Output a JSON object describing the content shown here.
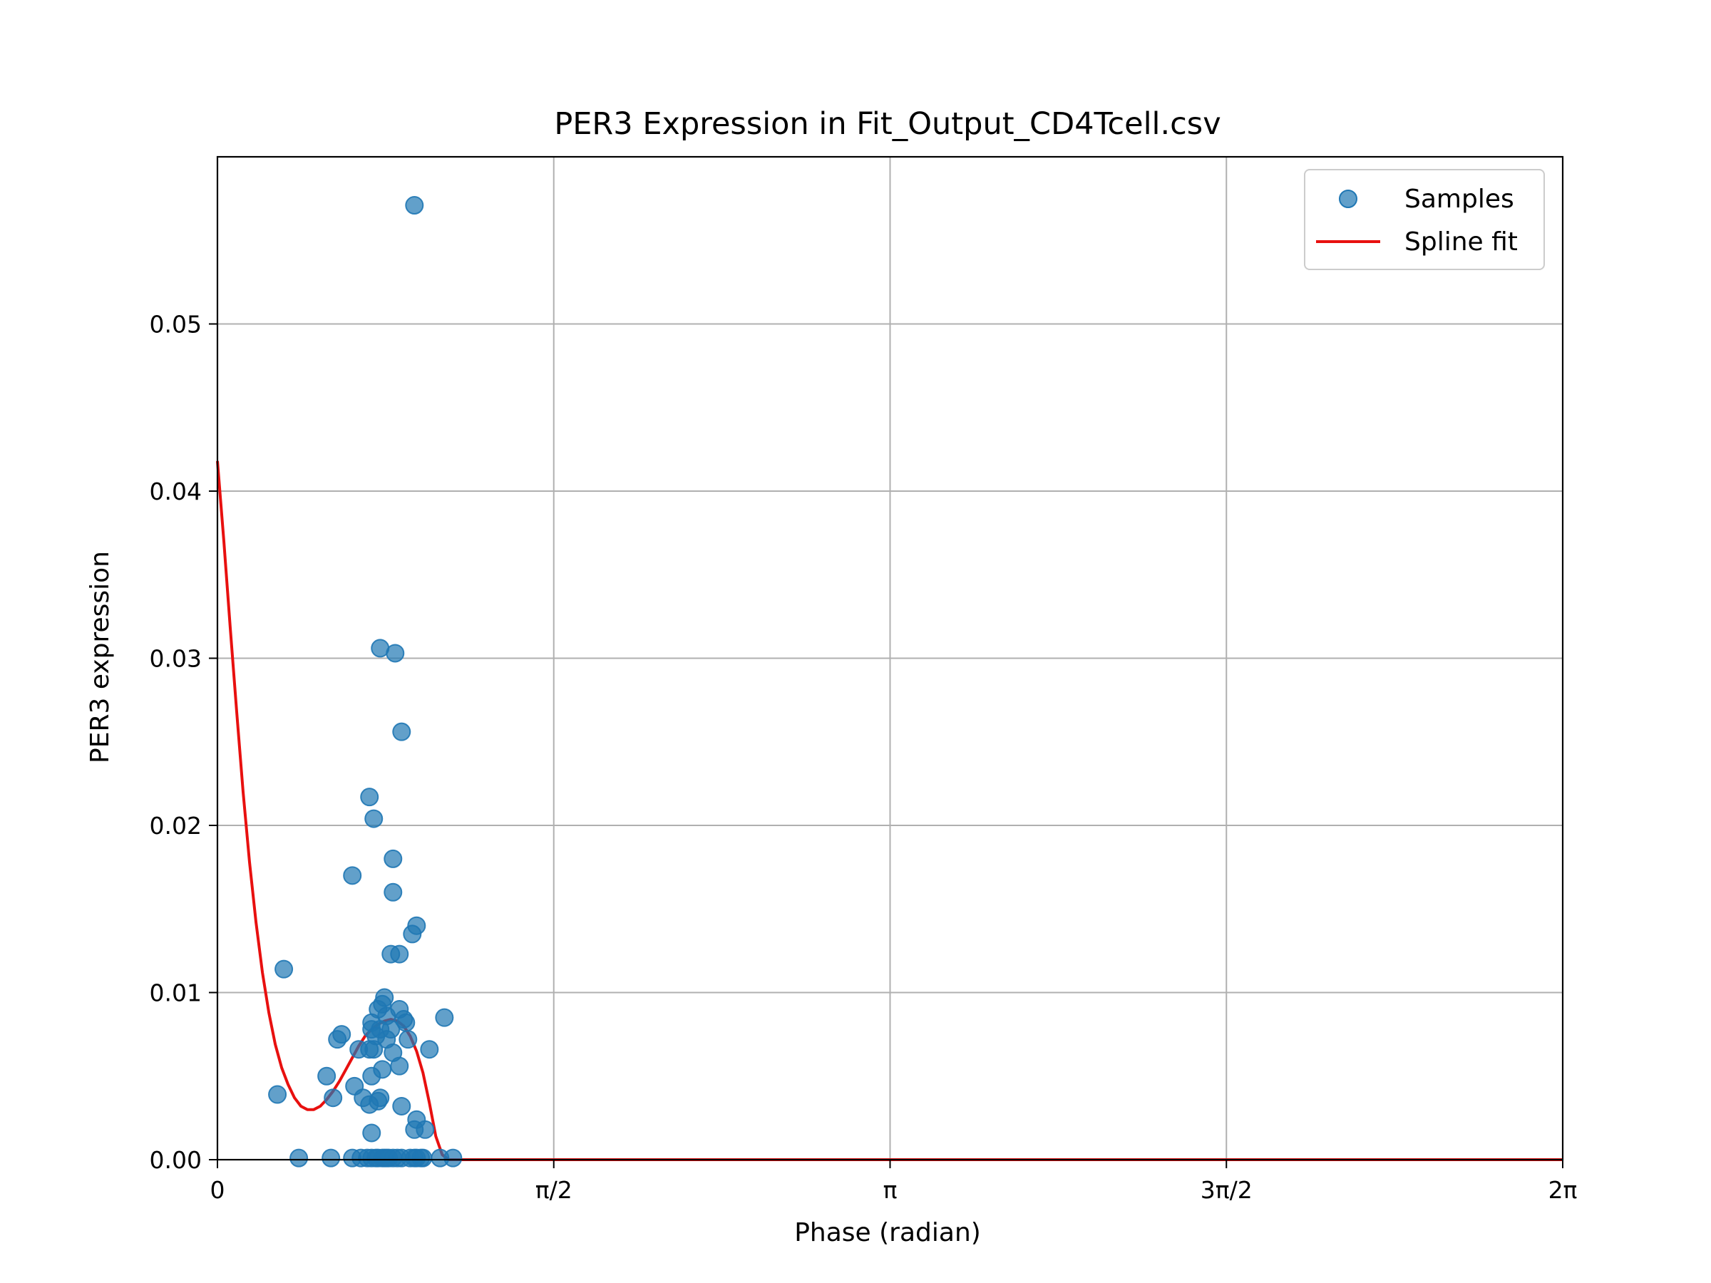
{
  "chart_data": {
    "type": "scatter",
    "title": "PER3 Expression in Fit_Output_CD4Tcell.csv",
    "xlabel": "Phase (radian)",
    "ylabel": "PER3 expression",
    "xlim": [
      0,
      6.283185
    ],
    "ylim": [
      0,
      0.06
    ],
    "grid": true,
    "legend_position": "top-right",
    "x_ticks": [
      {
        "value": 0,
        "label": "0"
      },
      {
        "value": 1.570796,
        "label": "π/2"
      },
      {
        "value": 3.141593,
        "label": "π"
      },
      {
        "value": 4.712389,
        "label": "3π/2"
      },
      {
        "value": 6.283185,
        "label": "2π"
      }
    ],
    "y_ticks": [
      {
        "value": 0,
        "label": "0.00"
      },
      {
        "value": 0.01,
        "label": "0.01"
      },
      {
        "value": 0.02,
        "label": "0.02"
      },
      {
        "value": 0.03,
        "label": "0.03"
      },
      {
        "value": 0.04,
        "label": "0.04"
      },
      {
        "value": 0.05,
        "label": "0.05"
      }
    ],
    "series": [
      {
        "name": "Samples",
        "kind": "scatter",
        "color": "#1f77b4",
        "points": [
          [
            0.92,
            0.0571
          ],
          [
            0.76,
            0.0306
          ],
          [
            0.83,
            0.0303
          ],
          [
            0.86,
            0.0256
          ],
          [
            0.71,
            0.0217
          ],
          [
            0.73,
            0.0204
          ],
          [
            0.63,
            0.017
          ],
          [
            0.82,
            0.018
          ],
          [
            0.82,
            0.016
          ],
          [
            0.93,
            0.014
          ],
          [
            0.91,
            0.0135
          ],
          [
            0.81,
            0.0123
          ],
          [
            0.85,
            0.0123
          ],
          [
            0.31,
            0.0114
          ],
          [
            1.06,
            0.0085
          ],
          [
            0.78,
            0.0097
          ],
          [
            0.77,
            0.0093
          ],
          [
            0.75,
            0.009
          ],
          [
            0.85,
            0.009
          ],
          [
            0.72,
            0.0082
          ],
          [
            0.79,
            0.0086
          ],
          [
            0.87,
            0.0084
          ],
          [
            0.88,
            0.0082
          ],
          [
            0.72,
            0.0078
          ],
          [
            0.76,
            0.0078
          ],
          [
            0.81,
            0.0078
          ],
          [
            0.74,
            0.0074
          ],
          [
            0.79,
            0.0072
          ],
          [
            0.58,
            0.0075
          ],
          [
            0.56,
            0.0072
          ],
          [
            0.89,
            0.0072
          ],
          [
            0.66,
            0.0066
          ],
          [
            0.71,
            0.0066
          ],
          [
            0.73,
            0.0066
          ],
          [
            0.82,
            0.0064
          ],
          [
            0.99,
            0.0066
          ],
          [
            0.77,
            0.0054
          ],
          [
            0.85,
            0.0056
          ],
          [
            0.51,
            0.005
          ],
          [
            0.72,
            0.005
          ],
          [
            0.64,
            0.0044
          ],
          [
            0.28,
            0.0039
          ],
          [
            0.54,
            0.0037
          ],
          [
            0.68,
            0.0037
          ],
          [
            0.76,
            0.0037
          ],
          [
            0.75,
            0.0035
          ],
          [
            0.71,
            0.0033
          ],
          [
            0.86,
            0.0032
          ],
          [
            0.93,
            0.0024
          ],
          [
            0.92,
            0.0018
          ],
          [
            0.97,
            0.0018
          ],
          [
            0.72,
            0.0016
          ],
          [
            0.38,
            0.0001
          ],
          [
            0.53,
            0.0001
          ],
          [
            0.63,
            0.0001
          ],
          [
            0.67,
            0.0001
          ],
          [
            0.7,
            0.0001
          ],
          [
            0.72,
            0.0001
          ],
          [
            0.74,
            0.0001
          ],
          [
            0.75,
            0.0001
          ],
          [
            0.77,
            0.0001
          ],
          [
            0.78,
            0.0001
          ],
          [
            0.79,
            0.0001
          ],
          [
            0.8,
            0.0001
          ],
          [
            0.82,
            0.0001
          ],
          [
            0.84,
            0.0001
          ],
          [
            0.86,
            0.0001
          ],
          [
            0.9,
            0.0001
          ],
          [
            0.92,
            0.0001
          ],
          [
            0.93,
            0.0001
          ],
          [
            0.95,
            0.0001
          ],
          [
            0.96,
            0.0001
          ],
          [
            1.04,
            0.0001
          ],
          [
            1.1,
            0.0001
          ]
        ]
      },
      {
        "name": "Spline fit",
        "kind": "line",
        "color": "#e8100f",
        "points": [
          [
            0.0,
            0.0418
          ],
          [
            0.03,
            0.037
          ],
          [
            0.06,
            0.0318
          ],
          [
            0.09,
            0.0268
          ],
          [
            0.12,
            0.022
          ],
          [
            0.15,
            0.0178
          ],
          [
            0.18,
            0.0142
          ],
          [
            0.21,
            0.0112
          ],
          [
            0.24,
            0.0088
          ],
          [
            0.27,
            0.0069
          ],
          [
            0.3,
            0.0055
          ],
          [
            0.33,
            0.0045
          ],
          [
            0.36,
            0.0037
          ],
          [
            0.39,
            0.0032
          ],
          [
            0.42,
            0.003
          ],
          [
            0.45,
            0.003
          ],
          [
            0.48,
            0.0032
          ],
          [
            0.51,
            0.0036
          ],
          [
            0.54,
            0.0041
          ],
          [
            0.57,
            0.0047
          ],
          [
            0.6,
            0.0054
          ],
          [
            0.63,
            0.0061
          ],
          [
            0.66,
            0.0068
          ],
          [
            0.69,
            0.0074
          ],
          [
            0.72,
            0.0078
          ],
          [
            0.75,
            0.0081
          ],
          [
            0.78,
            0.0083
          ],
          [
            0.81,
            0.0084
          ],
          [
            0.84,
            0.0083
          ],
          [
            0.87,
            0.008
          ],
          [
            0.9,
            0.0074
          ],
          [
            0.93,
            0.0065
          ],
          [
            0.96,
            0.0052
          ],
          [
            0.99,
            0.0034
          ],
          [
            1.02,
            0.0014
          ],
          [
            1.05,
            0.0003
          ],
          [
            1.08,
            0.0
          ],
          [
            1.2,
            0.0
          ],
          [
            2.0,
            0.0
          ],
          [
            3.0,
            0.0
          ],
          [
            4.0,
            0.0
          ],
          [
            5.0,
            0.0
          ],
          [
            6.283185,
            0.0
          ]
        ]
      }
    ]
  }
}
